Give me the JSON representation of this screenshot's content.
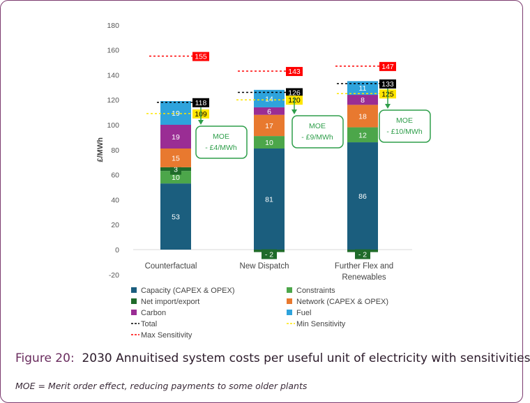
{
  "chart_data": {
    "type": "bar",
    "stacked": true,
    "ylabel": "£/MWh",
    "ylim": [
      -20,
      180
    ],
    "yticks": [
      -20,
      0,
      20,
      40,
      60,
      80,
      100,
      120,
      140,
      160,
      180
    ],
    "categories": [
      "Counterfactual",
      "New Dispatch",
      "Further Flex and Renewables"
    ],
    "series": [
      {
        "name": "Capacity (CAPEX & OPEX)",
        "color": "#1b5e7e",
        "values": [
          53,
          81,
          86
        ]
      },
      {
        "name": "Constraints",
        "color": "#4ca64a",
        "values": [
          10,
          10,
          12
        ]
      },
      {
        "name": "Net import/export",
        "color": "#1f6b2a",
        "values": [
          3,
          -2,
          -2
        ]
      },
      {
        "name": "Network (CAPEX & OPEX)",
        "color": "#e8792f",
        "values": [
          15,
          17,
          18
        ]
      },
      {
        "name": "Carbon",
        "color": "#9a2d94",
        "values": [
          19,
          6,
          8
        ]
      },
      {
        "name": "Fuel",
        "color": "#2ea3dc",
        "values": [
          19,
          14,
          11
        ]
      }
    ],
    "sensitivities": [
      {
        "name": "Total",
        "color": "#000000",
        "values": [
          118,
          126,
          133
        ]
      },
      {
        "name": "Min Sensitivity",
        "color": "#ffe600",
        "values": [
          109,
          120,
          125
        ]
      },
      {
        "name": "Max Sensitivity",
        "color": "#ff0000",
        "values": [
          155,
          143,
          147
        ]
      }
    ],
    "annotations": [
      {
        "title": "MOE",
        "text": "- £4/MWh"
      },
      {
        "title": "MOE",
        "text": "- £9/MWh"
      },
      {
        "title": "MOE",
        "text": "- £10/MWh"
      }
    ],
    "legend_order": [
      "Capacity (CAPEX & OPEX)",
      "Constraints",
      "Net import/export",
      "Network (CAPEX & OPEX)",
      "Carbon",
      "Fuel",
      "Total",
      "Min Sensitivity",
      "Max Sensitivity"
    ]
  },
  "caption": {
    "figure": "Figure 20:",
    "title": "2030 Annuitised system costs per useful unit of electricity with sensitivities"
  },
  "footnote": "MOE = Merit order effect, reducing payments to some older plants"
}
